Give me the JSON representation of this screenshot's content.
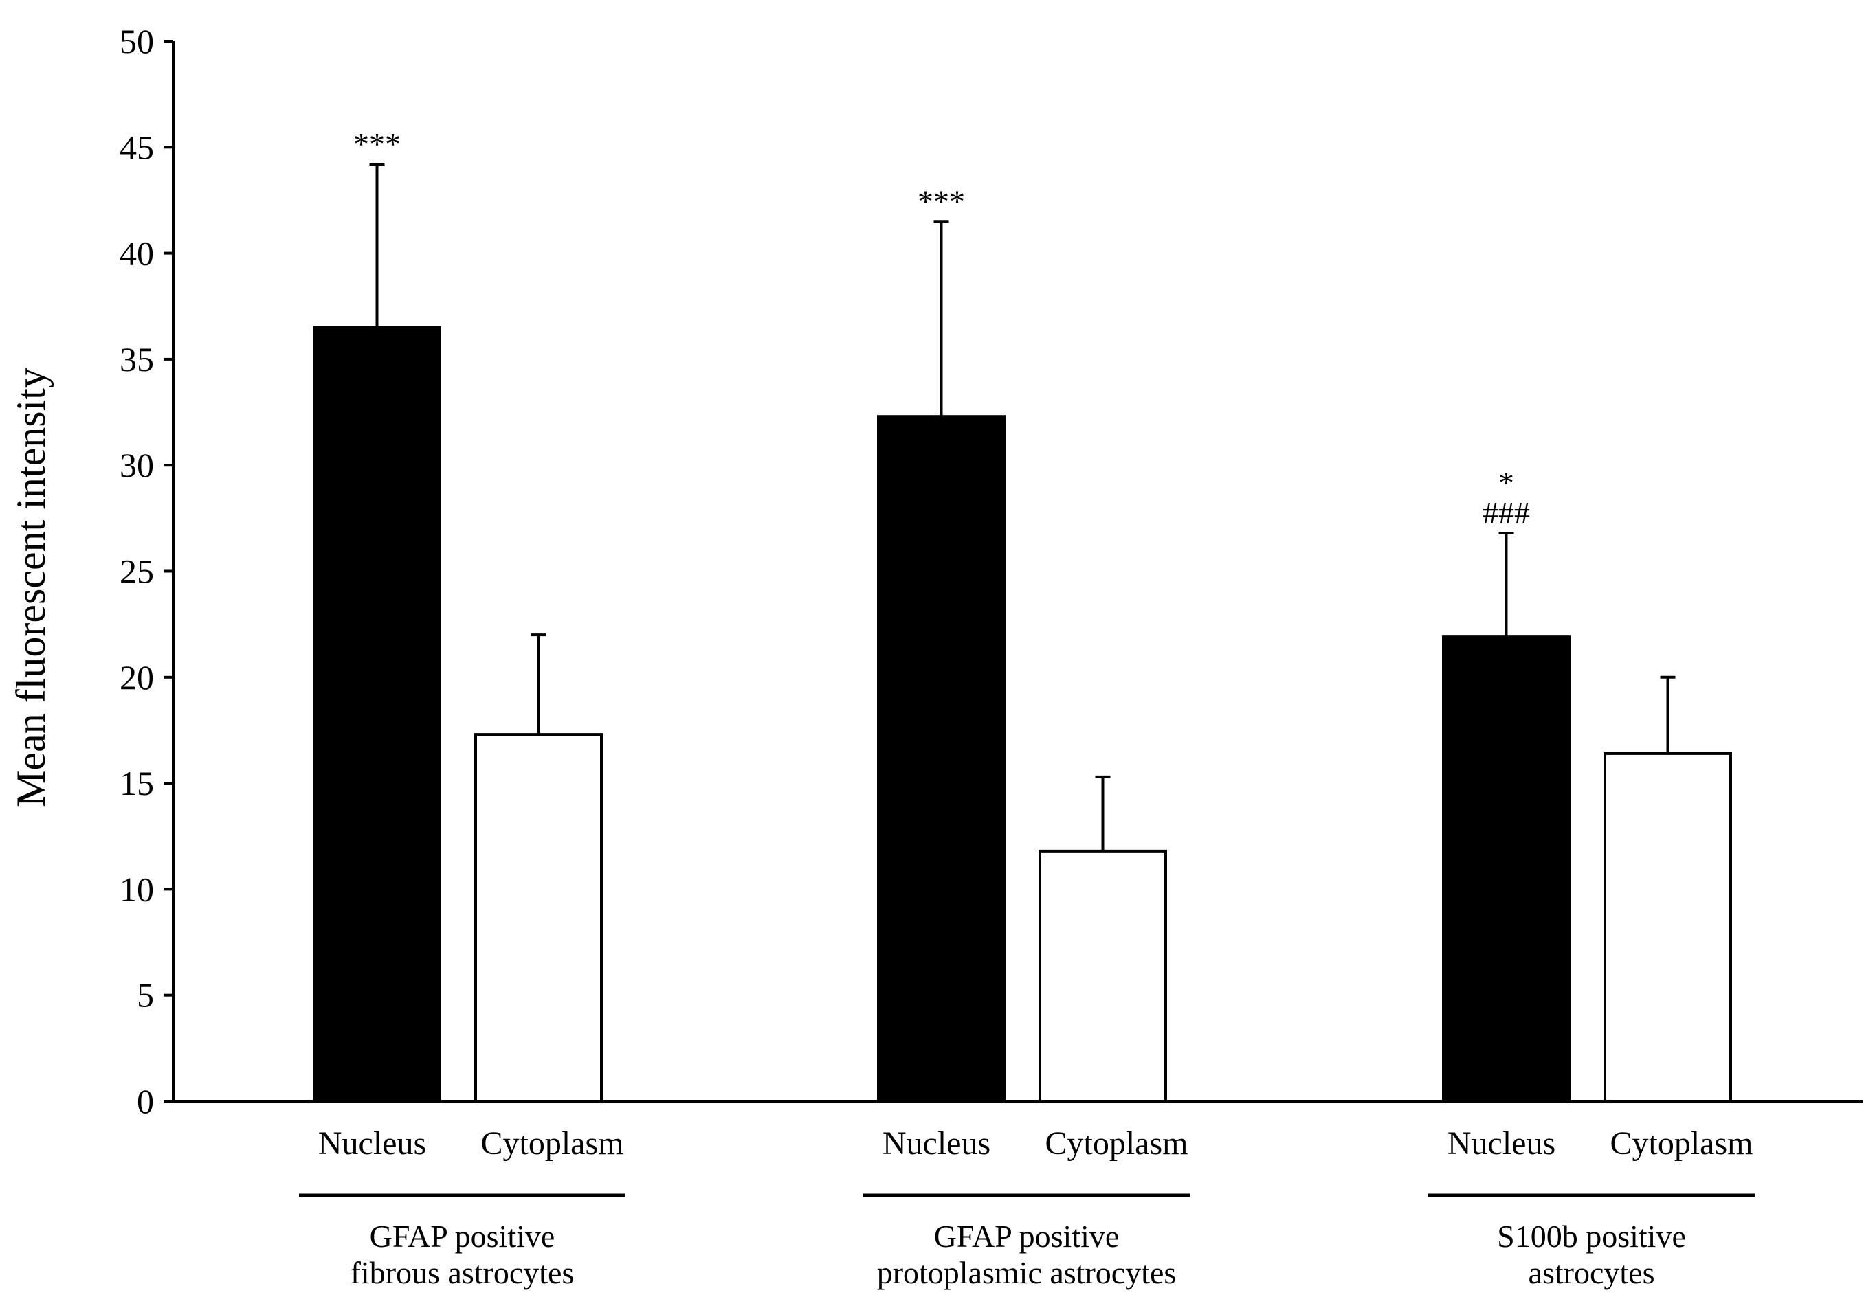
{
  "chart_data": {
    "type": "bar",
    "title": "",
    "xlabel": "",
    "ylabel": "Mean fluorescent intensity",
    "ylim": [
      0,
      50
    ],
    "yticks": [
      0,
      5,
      10,
      15,
      20,
      25,
      30,
      35,
      40,
      45,
      50
    ],
    "grid": false,
    "series_colors": {
      "Nucleus": "#000000",
      "Cytoplasm": "#ffffff"
    },
    "groups": [
      {
        "label_line1": "GFAP positive",
        "label_line2": "fibrous astrocytes",
        "bars": [
          {
            "category": "Nucleus",
            "value": 36.5,
            "error": 7.7,
            "annotation": "***",
            "annotation2": ""
          },
          {
            "category": "Cytoplasm",
            "value": 17.3,
            "error": 4.7,
            "annotation": "",
            "annotation2": ""
          }
        ]
      },
      {
        "label_line1": "GFAP positive",
        "label_line2": "protoplasmic astrocytes",
        "bars": [
          {
            "category": "Nucleus",
            "value": 32.3,
            "error": 9.2,
            "annotation": "***",
            "annotation2": ""
          },
          {
            "category": "Cytoplasm",
            "value": 11.8,
            "error": 3.5,
            "annotation": "",
            "annotation2": ""
          }
        ]
      },
      {
        "label_line1": "S100b positive",
        "label_line2": "astrocytes",
        "bars": [
          {
            "category": "Nucleus",
            "value": 21.9,
            "error": 4.9,
            "annotation": "*",
            "annotation2": "###"
          },
          {
            "category": "Cytoplasm",
            "value": 16.4,
            "error": 3.6,
            "annotation": "",
            "annotation2": ""
          }
        ]
      }
    ]
  }
}
